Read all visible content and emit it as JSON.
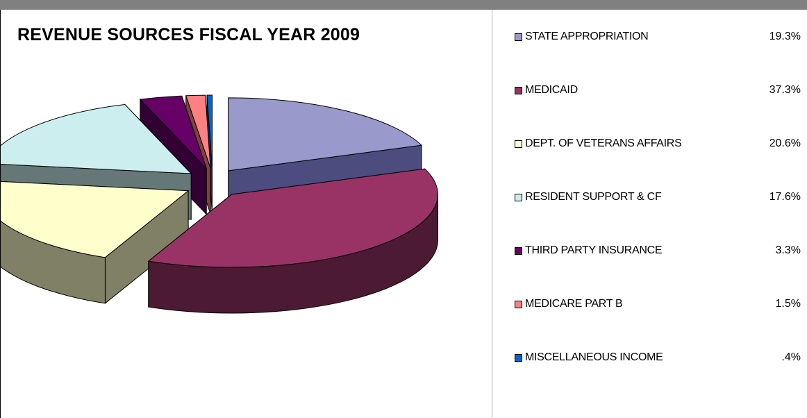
{
  "chart_data": {
    "type": "pie",
    "title": "REVENUE SOURCES FISCAL YEAR 2009",
    "legend_position": "right",
    "slices": [
      {
        "label": "STATE APPROPRIATION",
        "percent_label": "19.3%",
        "value": 19.3,
        "color": "#9999cc",
        "side_color": "#4c4c7f"
      },
      {
        "label": "MEDICAID",
        "percent_label": "37.3%",
        "value": 37.3,
        "color": "#993366",
        "side_color": "#4c1a33"
      },
      {
        "label": "DEPT. OF VETERANS AFFAIRS",
        "percent_label": "20.6%",
        "value": 20.6,
        "color": "#ffffcc",
        "side_color": "#808066"
      },
      {
        "label": "RESIDENT SUPPORT & CF",
        "percent_label": "17.6%",
        "value": 17.6,
        "color": "#cceeee",
        "side_color": "#667777"
      },
      {
        "label": "THIRD PARTY INSURANCE",
        "percent_label": "3.3%",
        "value": 3.3,
        "color": "#660066",
        "side_color": "#330033"
      },
      {
        "label": "MEDICARE PART B",
        "percent_label": "1.5%",
        "value": 1.5,
        "color": "#ff8080",
        "side_color": "#804040"
      },
      {
        "label": "MISCELLANEOUS INCOME",
        "percent_label": ".4%",
        "value": 0.4,
        "color": "#0066cc",
        "side_color": "#003366"
      }
    ]
  }
}
